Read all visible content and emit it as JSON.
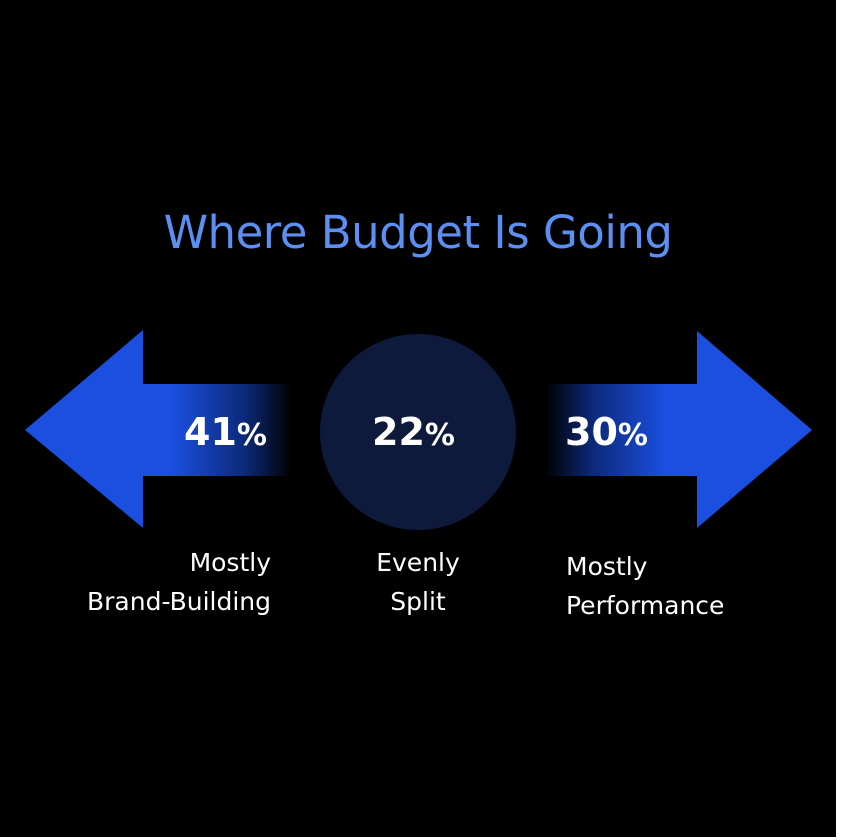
{
  "title": "Where Budget Is Going",
  "colors": {
    "background": "#000000",
    "title": "#5b8ff2",
    "arrow": "#1a4fe0",
    "circle": "#0e1a3c",
    "text": "#ffffff"
  },
  "items": [
    {
      "value": "41",
      "unit": "%",
      "label_line1": "Mostly",
      "label_line2": "Brand-Building",
      "shape": "arrow-left-icon"
    },
    {
      "value": "22",
      "unit": "%",
      "label_line1": "Evenly",
      "label_line2": "Split",
      "shape": "circle-badge"
    },
    {
      "value": "30",
      "unit": "%",
      "label_line1": "Mostly",
      "label_line2": "Performance",
      "shape": "arrow-right-icon"
    }
  ]
}
